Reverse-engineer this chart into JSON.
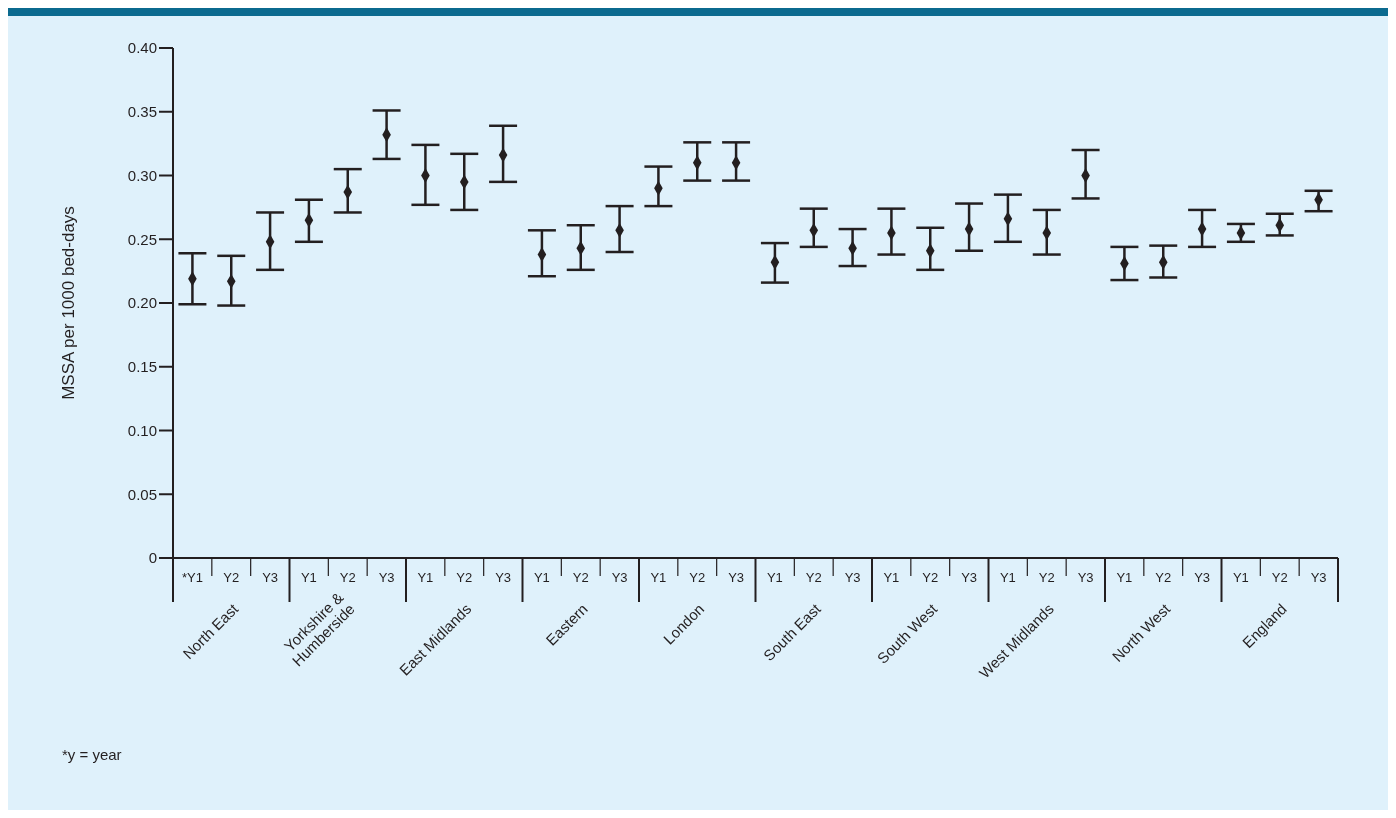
{
  "chart_data": {
    "type": "scatter",
    "ylabel": "MSSA per 1000 bed-days",
    "categories": [
      "*Y1",
      "Y2",
      "Y3",
      "Y1",
      "Y2",
      "Y3",
      "Y1",
      "Y2",
      "Y3",
      "Y1",
      "Y2",
      "Y3",
      "Y1",
      "Y2",
      "Y3",
      "Y1",
      "Y2",
      "Y3",
      "Y1",
      "Y2",
      "Y3",
      "Y1",
      "Y2",
      "Y3",
      "Y1",
      "Y2",
      "Y3",
      "Y1",
      "Y2",
      "Y3"
    ],
    "series": [
      {
        "color": "#231f20",
        "values": [
          0.219,
          0.217,
          0.248,
          0.265,
          0.287,
          0.332,
          0.3,
          0.295,
          0.316,
          0.238,
          0.243,
          0.257,
          0.29,
          0.31,
          0.31,
          0.232,
          0.257,
          0.243,
          0.255,
          0.241,
          0.258,
          0.266,
          0.255,
          0.3,
          0.231,
          0.232,
          0.258,
          0.255,
          0.261,
          0.281
        ],
        "errors": [
          [
            0.199,
            0.239
          ],
          [
            0.198,
            0.237
          ],
          [
            0.226,
            0.271
          ],
          [
            0.248,
            0.281
          ],
          [
            0.271,
            0.305
          ],
          [
            0.313,
            0.351
          ],
          [
            0.277,
            0.324
          ],
          [
            0.273,
            0.317
          ],
          [
            0.295,
            0.339
          ],
          [
            0.221,
            0.257
          ],
          [
            0.226,
            0.261
          ],
          [
            0.24,
            0.276
          ],
          [
            0.276,
            0.307
          ],
          [
            0.296,
            0.326
          ],
          [
            0.296,
            0.326
          ],
          [
            0.216,
            0.247
          ],
          [
            0.244,
            0.274
          ],
          [
            0.229,
            0.258
          ],
          [
            0.238,
            0.274
          ],
          [
            0.226,
            0.259
          ],
          [
            0.241,
            0.278
          ],
          [
            0.248,
            0.285
          ],
          [
            0.238,
            0.273
          ],
          [
            0.282,
            0.32
          ],
          [
            0.218,
            0.244
          ],
          [
            0.22,
            0.245
          ],
          [
            0.244,
            0.273
          ],
          [
            0.248,
            0.262
          ],
          [
            0.253,
            0.27
          ],
          [
            0.272,
            0.288
          ]
        ]
      }
    ],
    "ylim": [
      0,
      0.4
    ],
    "yticks": [
      0,
      0.05,
      {
        "value": 0.1,
        "label": "0.10"
      },
      0.15,
      {
        "value": 0.2,
        "label": "0.20"
      },
      0.25,
      {
        "value": 0.3,
        "label": "0.30"
      },
      0.35,
      {
        "value": 0.4,
        "label": "0.40"
      }
    ],
    "marker": "diamond",
    "annotations": [
      "North East",
      "Yorkshire &\nHumberside",
      "East Midlands",
      "Eastern",
      "London",
      "South East",
      "South West",
      "West Midlands",
      "North West",
      "England",
      "*y = year"
    ]
  }
}
